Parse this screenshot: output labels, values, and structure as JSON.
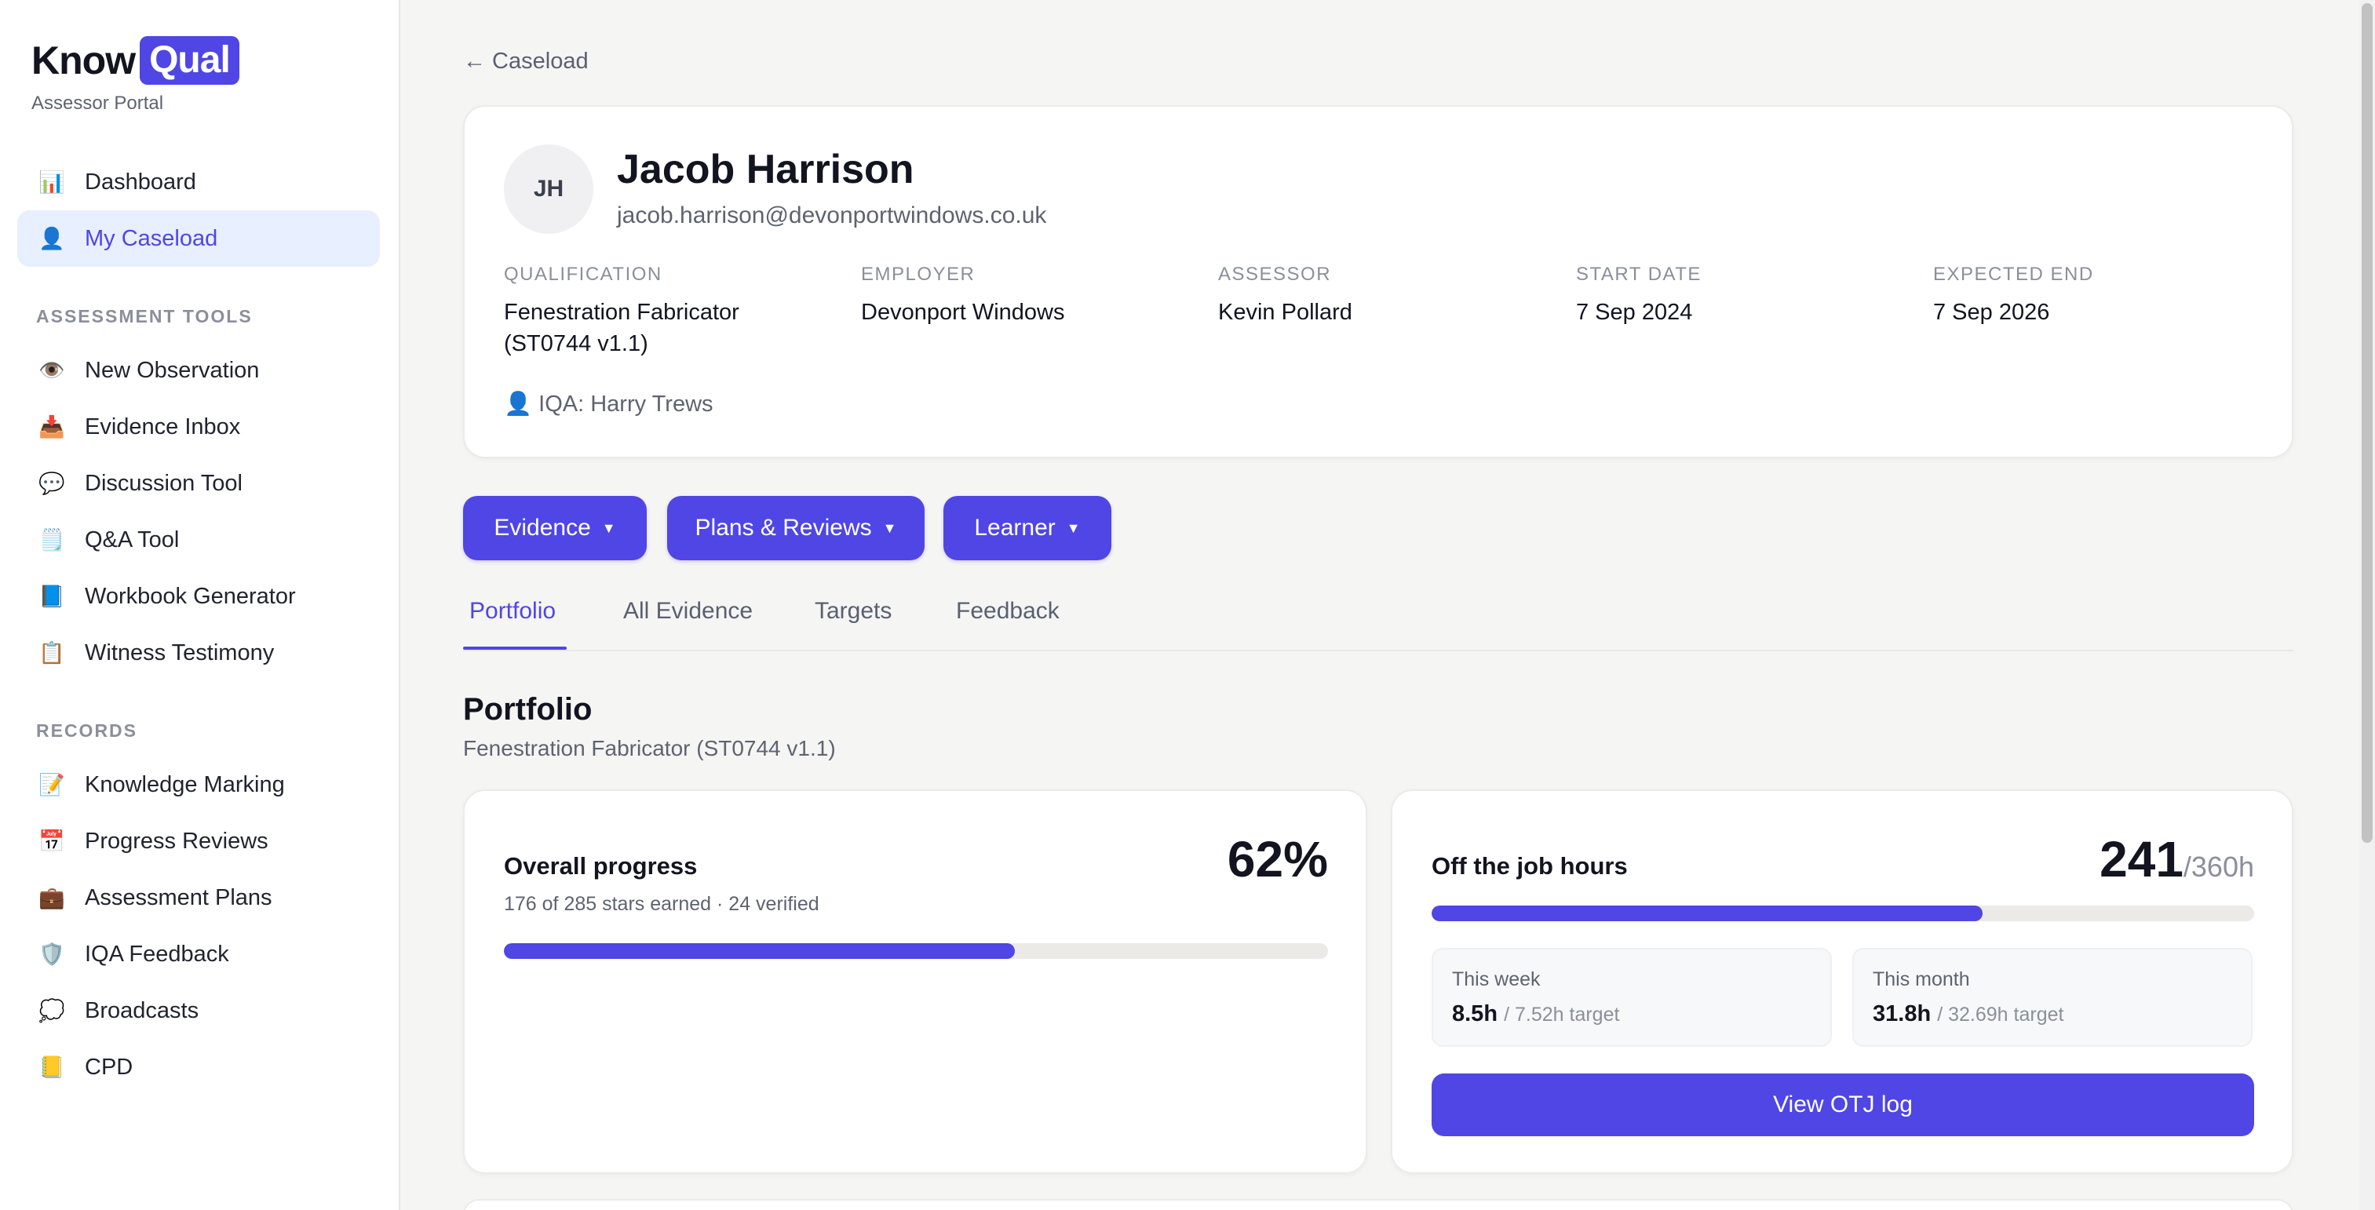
{
  "brand": {
    "name_part1": "Know",
    "name_part2": "Qual",
    "subtitle": "Assessor Portal",
    "accent": "#4f46e5"
  },
  "sidebar": {
    "main_items": [
      {
        "icon": "📊",
        "label": "Dashboard"
      },
      {
        "icon": "👤",
        "label": "My Caseload"
      }
    ],
    "section_assessment": "ASSESSMENT TOOLS",
    "assessment_items": [
      {
        "icon": "👁️",
        "label": "New Observation"
      },
      {
        "icon": "📥",
        "label": "Evidence Inbox"
      },
      {
        "icon": "💬",
        "label": "Discussion Tool"
      },
      {
        "icon": "🗒️",
        "label": "Q&A Tool"
      },
      {
        "icon": "📘",
        "label": "Workbook Generator"
      },
      {
        "icon": "📋",
        "label": "Witness Testimony"
      }
    ],
    "section_records": "RECORDS",
    "records_items": [
      {
        "icon": "📝",
        "label": "Knowledge Marking"
      },
      {
        "icon": "📅",
        "label": "Progress Reviews"
      },
      {
        "icon": "💼",
        "label": "Assessment Plans"
      },
      {
        "icon": "🛡️",
        "label": "IQA Feedback"
      },
      {
        "icon": "💭",
        "label": "Broadcasts"
      },
      {
        "icon": "📒",
        "label": "CPD"
      }
    ]
  },
  "back_link": "← Caseload",
  "learner": {
    "initials": "JH",
    "name": "Jacob Harrison",
    "email": "jacob.harrison@devonportwindows.co.uk",
    "meta": [
      {
        "label": "QUALIFICATION",
        "value": "Fenestration Fabricator (ST0744 v1.1)"
      },
      {
        "label": "EMPLOYER",
        "value": "Devonport Windows"
      },
      {
        "label": "ASSESSOR",
        "value": "Kevin Pollard"
      },
      {
        "label": "START DATE",
        "value": "7 Sep 2024"
      },
      {
        "label": "EXPECTED END",
        "value": "7 Sep 2026"
      }
    ],
    "iqa": "👤 IQA: Harry Trews"
  },
  "actions": [
    {
      "label": "Evidence"
    },
    {
      "label": "Plans & Reviews"
    },
    {
      "label": "Learner"
    }
  ],
  "tabs": [
    {
      "label": "Portfolio"
    },
    {
      "label": "All Evidence"
    },
    {
      "label": "Targets"
    },
    {
      "label": "Feedback"
    }
  ],
  "portfolio": {
    "title": "Portfolio",
    "subtitle": "Fenestration Fabricator (ST0744 v1.1)",
    "progress": {
      "title": "Overall progress",
      "percent_label": "62%",
      "percent_value": 62,
      "summary": "176 of 285 stars earned · 24 verified"
    },
    "otj": {
      "title": "Off the job hours",
      "hours": "241",
      "target_suffix": "/360h",
      "fraction": 0.67,
      "this_week_label": "This week",
      "this_week_value": "8.5h",
      "this_week_target": "/ 7.52h target",
      "this_month_label": "This month",
      "this_month_value": "31.8h",
      "this_month_target": "/ 32.69h target",
      "button": "View OTJ log"
    }
  }
}
